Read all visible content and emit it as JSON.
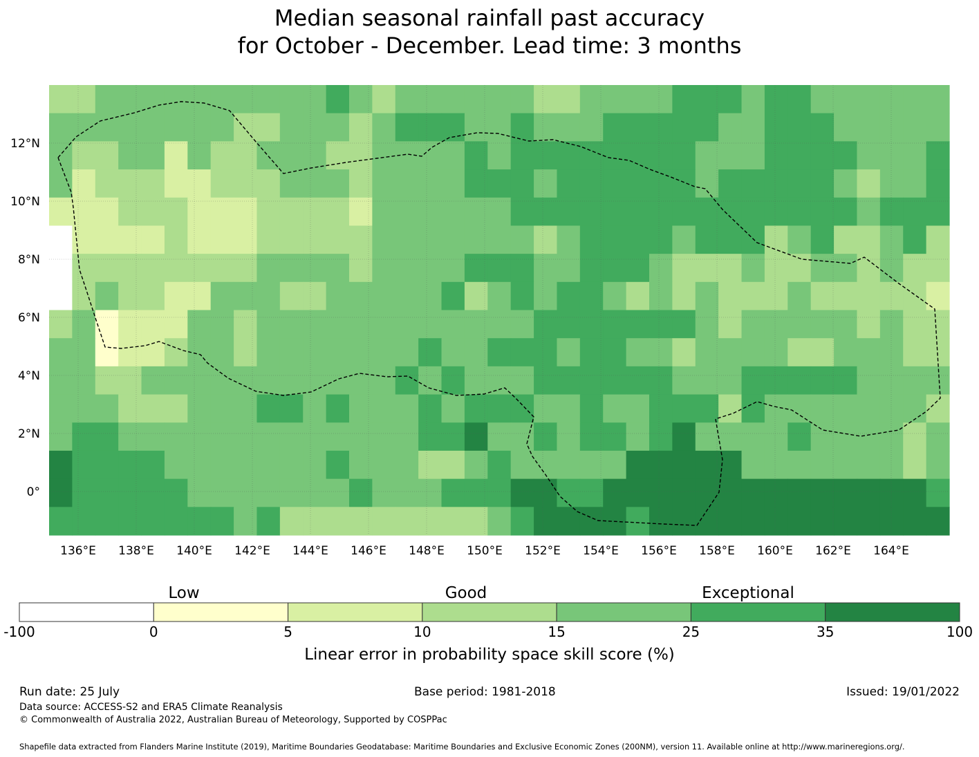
{
  "title": {
    "line1": "Median seasonal rainfall past accuracy",
    "line2": "for October - December. Lead time: 3 months"
  },
  "map": {
    "lon_ticks": [
      "136°E",
      "138°E",
      "140°E",
      "142°E",
      "144°E",
      "146°E",
      "148°E",
      "150°E",
      "152°E",
      "154°E",
      "156°E",
      "158°E",
      "160°E",
      "162°E",
      "164°E"
    ],
    "lat_ticks": [
      "12°N",
      "10°N",
      "8°N",
      "6°N",
      "4°N",
      "2°N",
      "0°"
    ],
    "lon_values": [
      136,
      138,
      140,
      142,
      144,
      146,
      148,
      150,
      152,
      154,
      156,
      158,
      160,
      162,
      164
    ],
    "lat_values": [
      12,
      10,
      8,
      6,
      4,
      2,
      0
    ],
    "lon_range": [
      135,
      166
    ],
    "lat_range": [
      -1.5,
      14
    ],
    "grid_layout": "16 rows x 39 columns, north row first; one letter per cell: w=-100 to 0, y=0 to 5, a=5 to 10, b=10 to 15, c=15 to 25, d=25 to 35, e=35 to 100",
    "grid": [
      "bbccccccccccdcbccccccbbccccdddcddcccccc",
      "ccccccccbbcccbcdddccdcccdddddccdddccccc",
      "cbbccacbbcccbbccccdcddddddddcccddddcccd",
      "cabbbaabbbcccbccccdddcddddddcdddddcbccd",
      "aaabbbaaabbbbaccccccdddddddddddddddcddd",
      "waaaabaaabbbbbcccccccbcddddcdddbcdbbcdb",
      "wbbbbbbbbccccbccccdddccdddcbbbcbbccbcbb",
      "wbcbbaacccbbcccccdbcdcddcbcbcbbbcbbbbba",
      "bcyaaaccbccccccccccccdddddddcbcccccbcbb",
      "ccyaabccbcccccccdccdddcddccbccccbbcccbb",
      "ccbbcccccccccccdcdcccddddddcccdddddcccc",
      "cccbbbcccddcdcccdcdddccdccdddbdcccccccb",
      "cddcccccccccccccddeccdcddcdeccccdccccbc",
      "eddddcccccccdcccbbcdccccceeeeecccccccbc",
      "edddddcccccccdcccdddeeddeeeeeeeeeeeeeed",
      "ddddddddcdbbbbbbbbbcdeeeedeeeeeeeeeeeee"
    ],
    "legend_colors": [
      "#ffffff",
      "#ffffcc",
      "#d9f0a3",
      "#addd8e",
      "#78c679",
      "#41ab5d",
      "#238443"
    ]
  },
  "colorbar": {
    "categories": [
      {
        "label": "Low",
        "at": 4
      },
      {
        "label": "Good",
        "at": 10
      },
      {
        "label": "Exceptional",
        "at": 16
      }
    ],
    "tick_labels": [
      "-100",
      "0",
      "5",
      "10",
      "15",
      "25",
      "35",
      "100"
    ],
    "colors": [
      "#ffffff",
      "#ffffcc",
      "#d9f0a3",
      "#addd8e",
      "#78c679",
      "#41ab5d",
      "#238443"
    ],
    "title": "Linear error in probability space skill score (%)"
  },
  "footer": {
    "run_date": "Run date: 25 July",
    "base_period": "Base period: 1981-2018",
    "issued": "Issued: 19/01/2022",
    "data_source": "Data source: ACCESS-S2 and ERA5 Climate Reanalysis",
    "copyright": "© Commonwealth of Australia 2022, Australian Bureau of Meteorology, Supported by COSPPac",
    "shapefile": "Shapefile data extracted from Flanders Marine Institute (2019), Maritime Boundaries Geodatabase: Maritime Boundaries and Exclusive Economic Zones (200NM), version 11. Available online at http://www.marineregions.org/."
  }
}
